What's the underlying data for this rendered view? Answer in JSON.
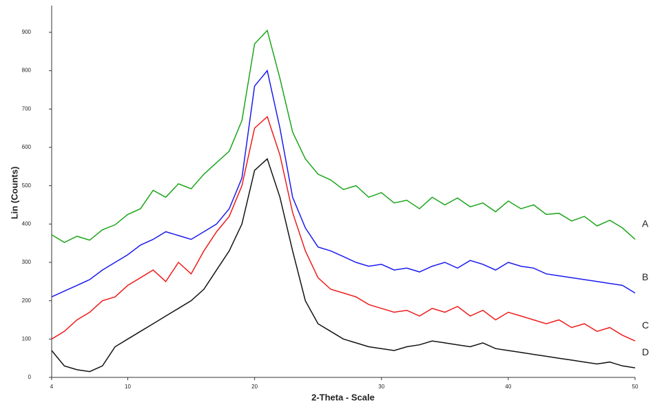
{
  "chart_data": {
    "type": "line",
    "xlabel": "2-Theta - Scale",
    "ylabel": "Lin (Counts)",
    "x": [
      4,
      5,
      6,
      7,
      8,
      9,
      10,
      11,
      12,
      13,
      14,
      15,
      16,
      17,
      18,
      19,
      20,
      21,
      22,
      23,
      24,
      25,
      26,
      27,
      28,
      29,
      30,
      31,
      32,
      33,
      34,
      35,
      36,
      37,
      38,
      39,
      40,
      41,
      42,
      43,
      44,
      45,
      46,
      47,
      48,
      49,
      50
    ],
    "series": [
      {
        "name": "A",
        "color": "#1aa51a",
        "values": [
          372,
          352,
          368,
          358,
          385,
          398,
          425,
          440,
          488,
          470,
          505,
          492,
          530,
          560,
          590,
          670,
          870,
          905,
          780,
          640,
          570,
          530,
          515,
          490,
          500,
          470,
          482,
          455,
          462,
          440,
          470,
          450,
          468,
          445,
          455,
          432,
          460,
          440,
          450,
          425,
          428,
          408,
          420,
          395,
          410,
          390,
          360
        ]
      },
      {
        "name": "B",
        "color": "#1a1aee",
        "values": [
          210,
          225,
          240,
          255,
          280,
          300,
          320,
          345,
          360,
          380,
          370,
          360,
          380,
          400,
          440,
          520,
          760,
          800,
          650,
          470,
          390,
          340,
          330,
          315,
          300,
          290,
          295,
          280,
          285,
          275,
          290,
          300,
          285,
          305,
          295,
          280,
          300,
          290,
          285,
          270,
          265,
          260,
          255,
          250,
          245,
          240,
          220
        ]
      },
      {
        "name": "C",
        "color": "#ee1a1a",
        "values": [
          100,
          120,
          150,
          170,
          200,
          210,
          240,
          260,
          280,
          250,
          300,
          270,
          330,
          380,
          420,
          500,
          650,
          680,
          580,
          430,
          330,
          260,
          230,
          220,
          210,
          190,
          180,
          170,
          175,
          160,
          180,
          170,
          185,
          160,
          175,
          150,
          170,
          160,
          150,
          140,
          150,
          130,
          140,
          120,
          130,
          110,
          95
        ]
      },
      {
        "name": "D",
        "color": "#111111",
        "values": [
          70,
          30,
          20,
          15,
          30,
          80,
          100,
          120,
          140,
          160,
          180,
          200,
          230,
          280,
          330,
          400,
          540,
          570,
          470,
          330,
          200,
          140,
          120,
          100,
          90,
          80,
          75,
          70,
          80,
          85,
          95,
          90,
          85,
          80,
          90,
          75,
          70,
          65,
          60,
          55,
          50,
          45,
          40,
          35,
          40,
          30,
          25
        ]
      }
    ],
    "xlim": [
      4,
      50
    ],
    "xticks": [
      4,
      10,
      20,
      30,
      40,
      50
    ],
    "ylim": [
      0,
      970
    ],
    "yticks": [
      0,
      100,
      200,
      300,
      400,
      500,
      600,
      700,
      800,
      900
    ]
  }
}
